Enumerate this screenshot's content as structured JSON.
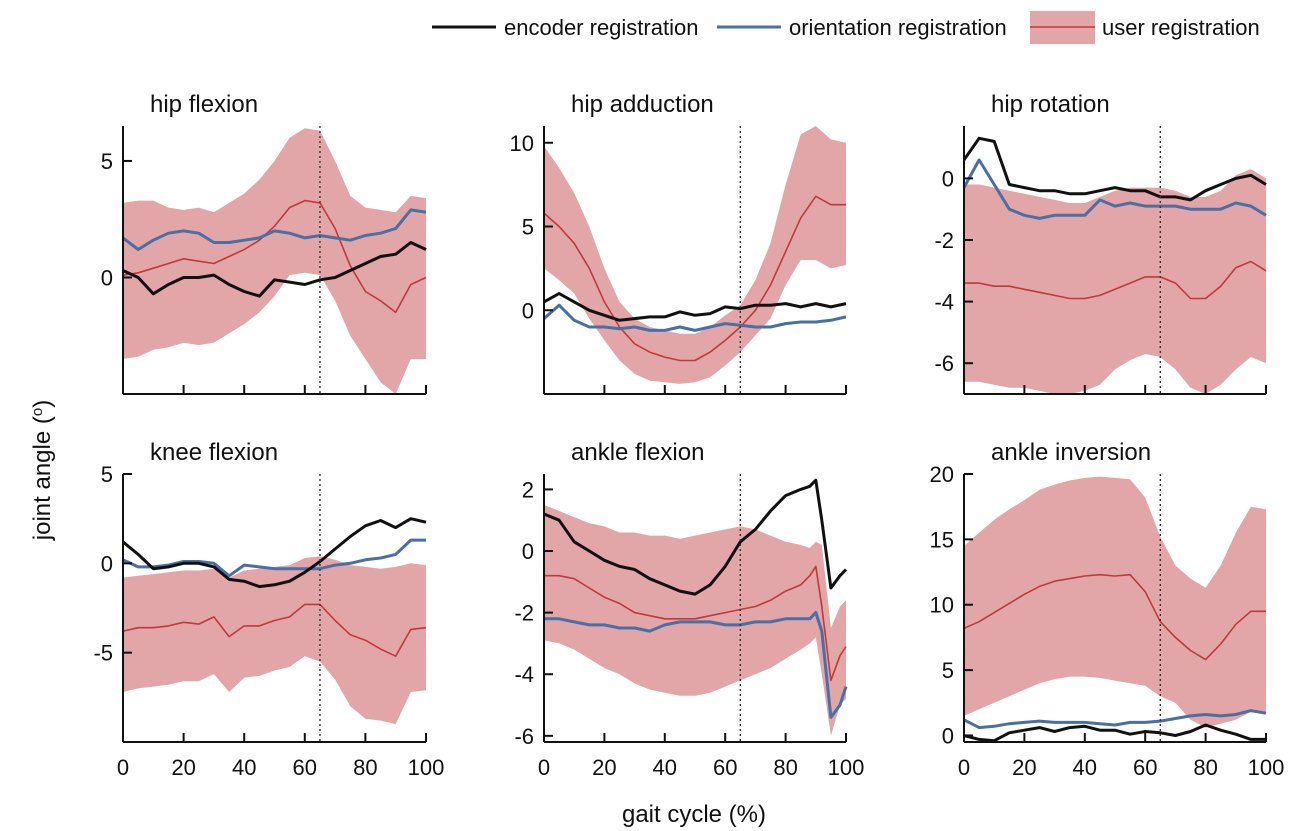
{
  "chart_data": {
    "type": "line",
    "ylabel_left": "joint angle (°)",
    "ylabel_base": "joint angle (",
    "ylabel_sup": "o",
    "ylabel_close": ")",
    "xlabel": "gait cycle (%)",
    "x_ticks": [
      0,
      20,
      40,
      60,
      80,
      100
    ],
    "vline_x": 65,
    "legend": {
      "placement": "top-right",
      "entries": [
        {
          "name": "encoder registration",
          "color": "#111111",
          "kind": "line"
        },
        {
          "name": "orientation registration",
          "color": "#4a6fa5",
          "kind": "line"
        },
        {
          "name": "user registration",
          "color": "#c0393b",
          "band_color": "#e2a6a8",
          "kind": "band"
        }
      ]
    },
    "panels": [
      {
        "title": "hip flexion",
        "ylim": [
          -5,
          6.5
        ],
        "y_ticks": [
          0,
          5
        ],
        "x": [
          0,
          5,
          10,
          15,
          20,
          25,
          30,
          35,
          40,
          45,
          50,
          55,
          60,
          65,
          70,
          75,
          80,
          85,
          90,
          95,
          100
        ],
        "encoder": [
          0.3,
          0.0,
          -0.7,
          -0.3,
          0.0,
          0.0,
          0.1,
          -0.3,
          -0.6,
          -0.8,
          -0.1,
          -0.2,
          -0.3,
          -0.1,
          0.0,
          0.3,
          0.6,
          0.9,
          1.0,
          1.5,
          1.2
        ],
        "orientation": [
          1.7,
          1.2,
          1.6,
          1.9,
          2.0,
          1.9,
          1.5,
          1.5,
          1.6,
          1.7,
          2.0,
          1.9,
          1.7,
          1.8,
          1.7,
          1.6,
          1.8,
          1.9,
          2.1,
          2.9,
          2.8
        ],
        "user_mean": [
          0.1,
          0.2,
          0.4,
          0.6,
          0.8,
          0.7,
          0.6,
          0.9,
          1.2,
          1.6,
          2.2,
          3.0,
          3.3,
          3.2,
          2.1,
          0.5,
          -0.6,
          -1.0,
          -1.5,
          -0.3,
          0.0
        ],
        "user_upper": [
          3.2,
          3.3,
          3.3,
          3.0,
          2.9,
          3.0,
          2.8,
          3.2,
          3.6,
          4.2,
          5.0,
          6.0,
          6.4,
          6.3,
          5.0,
          3.5,
          3.0,
          2.9,
          2.8,
          3.5,
          3.4
        ],
        "user_lower": [
          -3.5,
          -3.4,
          -3.1,
          -3.0,
          -2.8,
          -2.9,
          -2.8,
          -2.4,
          -2.0,
          -1.5,
          -0.8,
          0.1,
          0.2,
          0.1,
          -1.0,
          -2.5,
          -3.5,
          -4.5,
          -5.0,
          -3.5,
          -3.5
        ]
      },
      {
        "title": "hip adduction",
        "ylim": [
          -5,
          11
        ],
        "y_ticks": [
          0,
          5,
          10
        ],
        "x": [
          0,
          5,
          10,
          15,
          20,
          25,
          30,
          35,
          40,
          45,
          50,
          55,
          60,
          65,
          70,
          75,
          80,
          85,
          90,
          95,
          100
        ],
        "encoder": [
          0.5,
          1.0,
          0.5,
          0.0,
          -0.3,
          -0.6,
          -0.5,
          -0.4,
          -0.4,
          -0.1,
          -0.3,
          -0.2,
          0.2,
          0.1,
          0.3,
          0.3,
          0.4,
          0.2,
          0.4,
          0.2,
          0.4
        ],
        "orientation": [
          -0.5,
          0.3,
          -0.6,
          -1.0,
          -1.0,
          -1.1,
          -1.0,
          -1.2,
          -1.2,
          -1.0,
          -1.2,
          -1.0,
          -0.8,
          -0.9,
          -1.0,
          -1.0,
          -0.8,
          -0.7,
          -0.7,
          -0.6,
          -0.4
        ],
        "user_mean": [
          5.8,
          5.0,
          4.0,
          2.5,
          0.5,
          -1.0,
          -2.0,
          -2.5,
          -2.8,
          -3.0,
          -3.0,
          -2.5,
          -1.8,
          -1.0,
          0.0,
          1.5,
          3.5,
          5.5,
          6.8,
          6.3,
          6.3
        ],
        "user_upper": [
          9.8,
          8.5,
          7.0,
          5.0,
          2.5,
          0.5,
          -0.5,
          -1.0,
          -1.2,
          -1.4,
          -1.4,
          -1.0,
          -0.3,
          0.3,
          1.8,
          4.0,
          7.5,
          10.5,
          11.0,
          10.2,
          10.0
        ],
        "user_lower": [
          2.5,
          1.8,
          1.0,
          -0.5,
          -1.8,
          -3.0,
          -3.8,
          -4.2,
          -4.3,
          -4.4,
          -4.3,
          -4.0,
          -3.3,
          -2.5,
          -1.5,
          -0.5,
          1.5,
          3.0,
          3.0,
          2.5,
          2.7
        ]
      },
      {
        "title": "hip rotation",
        "ylim": [
          -7,
          1.7
        ],
        "y_ticks": [
          -6,
          -4,
          -2,
          0
        ],
        "x": [
          0,
          5,
          10,
          15,
          20,
          25,
          30,
          35,
          40,
          45,
          50,
          55,
          60,
          65,
          70,
          75,
          80,
          85,
          90,
          95,
          100
        ],
        "encoder": [
          0.6,
          1.3,
          1.2,
          -0.2,
          -0.3,
          -0.4,
          -0.4,
          -0.5,
          -0.5,
          -0.4,
          -0.3,
          -0.4,
          -0.4,
          -0.6,
          -0.6,
          -0.7,
          -0.4,
          -0.2,
          0.0,
          0.1,
          -0.2
        ],
        "orientation": [
          -0.3,
          0.6,
          -0.2,
          -1.0,
          -1.2,
          -1.3,
          -1.2,
          -1.2,
          -1.2,
          -0.7,
          -0.9,
          -0.8,
          -0.9,
          -0.9,
          -0.9,
          -1.0,
          -1.0,
          -1.0,
          -0.8,
          -0.9,
          -1.2
        ],
        "user_mean": [
          -3.4,
          -3.4,
          -3.5,
          -3.5,
          -3.6,
          -3.7,
          -3.8,
          -3.9,
          -3.9,
          -3.8,
          -3.6,
          -3.4,
          -3.2,
          -3.2,
          -3.4,
          -3.9,
          -3.9,
          -3.5,
          -2.9,
          -2.7,
          -3.0
        ],
        "user_upper": [
          -0.2,
          -0.2,
          -0.3,
          -0.4,
          -0.5,
          -0.6,
          -0.7,
          -0.8,
          -0.8,
          -0.6,
          -0.4,
          -0.3,
          -0.3,
          -0.3,
          -0.4,
          -0.6,
          -0.6,
          -0.4,
          0.1,
          0.3,
          0.0
        ],
        "user_lower": [
          -6.6,
          -6.6,
          -6.7,
          -6.8,
          -6.8,
          -6.9,
          -7.0,
          -7.0,
          -6.9,
          -6.7,
          -6.2,
          -5.9,
          -5.7,
          -5.8,
          -6.2,
          -6.8,
          -7.0,
          -6.7,
          -6.2,
          -5.8,
          -6.0
        ]
      },
      {
        "title": "knee flexion",
        "ylim": [
          -10,
          5
        ],
        "y_ticks": [
          -5,
          0,
          5
        ],
        "x": [
          0,
          5,
          10,
          15,
          20,
          25,
          30,
          35,
          40,
          45,
          50,
          55,
          60,
          65,
          70,
          75,
          80,
          85,
          90,
          95,
          100
        ],
        "encoder": [
          1.2,
          0.5,
          -0.3,
          -0.2,
          0.0,
          0.0,
          -0.2,
          -0.9,
          -1.0,
          -1.3,
          -1.2,
          -1.0,
          -0.5,
          0.1,
          0.8,
          1.5,
          2.1,
          2.4,
          2.0,
          2.5,
          2.3
        ],
        "orientation": [
          0.2,
          -0.2,
          -0.2,
          -0.1,
          0.1,
          0.1,
          0.0,
          -0.7,
          -0.1,
          -0.2,
          -0.3,
          -0.3,
          -0.3,
          -0.3,
          -0.1,
          0.0,
          0.2,
          0.3,
          0.5,
          1.3,
          1.3
        ],
        "user_mean": [
          -3.8,
          -3.6,
          -3.6,
          -3.5,
          -3.3,
          -3.4,
          -3.0,
          -4.1,
          -3.5,
          -3.5,
          -3.2,
          -3.0,
          -2.3,
          -2.3,
          -3.2,
          -4.0,
          -4.3,
          -4.8,
          -5.2,
          -3.7,
          -3.6
        ],
        "user_upper": [
          -0.8,
          -0.7,
          -0.6,
          -0.5,
          -0.4,
          -0.4,
          -0.3,
          -0.8,
          -0.4,
          -0.3,
          -0.2,
          -0.1,
          0.3,
          0.4,
          0.2,
          -0.1,
          -0.2,
          -0.3,
          -0.2,
          0.0,
          -0.1
        ],
        "user_lower": [
          -7.2,
          -7.0,
          -6.9,
          -6.8,
          -6.6,
          -6.6,
          -6.2,
          -7.2,
          -6.4,
          -6.3,
          -6.0,
          -5.8,
          -5.2,
          -5.5,
          -6.5,
          -8.0,
          -8.7,
          -8.8,
          -9.0,
          -7.2,
          -7.1
        ]
      },
      {
        "title": "ankle flexion",
        "ylim": [
          -6.2,
          2.5
        ],
        "y_ticks": [
          -6,
          -4,
          -2,
          0,
          2
        ],
        "x": [
          0,
          5,
          10,
          15,
          20,
          25,
          30,
          35,
          40,
          45,
          50,
          55,
          60,
          65,
          70,
          75,
          80,
          85,
          88,
          90,
          92,
          95,
          98,
          100
        ],
        "encoder": [
          1.2,
          1.0,
          0.3,
          0.0,
          -0.3,
          -0.5,
          -0.6,
          -0.9,
          -1.1,
          -1.3,
          -1.4,
          -1.1,
          -0.5,
          0.3,
          0.7,
          1.3,
          1.8,
          2.0,
          2.1,
          2.3,
          1.0,
          -1.2,
          -0.8,
          -0.6
        ],
        "orientation": [
          -2.2,
          -2.2,
          -2.3,
          -2.4,
          -2.4,
          -2.5,
          -2.5,
          -2.6,
          -2.4,
          -2.3,
          -2.3,
          -2.3,
          -2.4,
          -2.4,
          -2.3,
          -2.3,
          -2.2,
          -2.2,
          -2.2,
          -2.0,
          -2.6,
          -5.4,
          -5.0,
          -4.4
        ],
        "user_mean": [
          -0.8,
          -0.8,
          -0.9,
          -1.2,
          -1.5,
          -1.7,
          -2.0,
          -2.1,
          -2.2,
          -2.2,
          -2.2,
          -2.1,
          -2.0,
          -1.9,
          -1.8,
          -1.6,
          -1.3,
          -1.1,
          -0.8,
          -0.5,
          -1.8,
          -4.2,
          -3.4,
          -3.1
        ],
        "user_upper": [
          1.5,
          1.3,
          1.1,
          0.9,
          0.8,
          0.6,
          0.6,
          0.5,
          0.5,
          0.4,
          0.5,
          0.6,
          0.7,
          0.8,
          0.7,
          0.5,
          0.3,
          0.2,
          0.1,
          0.3,
          0.2,
          -2.5,
          -1.8,
          -1.6
        ],
        "user_lower": [
          -2.9,
          -3.0,
          -3.2,
          -3.5,
          -3.8,
          -4.0,
          -4.3,
          -4.5,
          -4.6,
          -4.7,
          -4.7,
          -4.6,
          -4.4,
          -4.2,
          -4.0,
          -3.8,
          -3.5,
          -3.2,
          -3.0,
          -2.8,
          -4.0,
          -6.0,
          -5.0,
          -4.8
        ]
      },
      {
        "title": "ankle inversion",
        "ylim": [
          -0.5,
          20
        ],
        "y_ticks": [
          0,
          5,
          10,
          15,
          20
        ],
        "x": [
          0,
          5,
          10,
          15,
          20,
          25,
          30,
          35,
          40,
          45,
          50,
          55,
          60,
          65,
          70,
          75,
          80,
          85,
          90,
          95,
          100
        ],
        "encoder": [
          0.0,
          -0.3,
          -0.4,
          0.2,
          0.4,
          0.6,
          0.3,
          0.6,
          0.7,
          0.4,
          0.4,
          0.1,
          0.3,
          0.2,
          0.0,
          0.3,
          0.8,
          0.4,
          0.1,
          -0.3,
          -0.3
        ],
        "orientation": [
          1.2,
          0.6,
          0.7,
          0.9,
          1.0,
          1.1,
          1.0,
          1.0,
          1.0,
          0.9,
          0.8,
          1.0,
          1.0,
          1.1,
          1.3,
          1.5,
          1.6,
          1.5,
          1.6,
          1.9,
          1.7
        ],
        "user_mean": [
          8.2,
          8.7,
          9.4,
          10.1,
          10.8,
          11.4,
          11.8,
          12.0,
          12.2,
          12.3,
          12.2,
          12.3,
          11.0,
          8.7,
          7.5,
          6.5,
          5.8,
          7.0,
          8.5,
          9.5,
          9.5
        ],
        "user_upper": [
          14.5,
          15.5,
          16.5,
          17.3,
          18.0,
          18.8,
          19.2,
          19.5,
          19.7,
          19.8,
          19.7,
          19.6,
          18.2,
          15.2,
          13.0,
          12.0,
          11.3,
          13.0,
          15.5,
          17.5,
          17.3
        ],
        "user_lower": [
          1.5,
          2.0,
          2.5,
          3.0,
          3.5,
          4.0,
          4.3,
          4.5,
          4.5,
          4.4,
          4.2,
          4.0,
          3.8,
          3.0,
          2.5,
          1.2,
          0.6,
          0.9,
          1.2,
          1.8,
          1.8
        ]
      }
    ]
  }
}
